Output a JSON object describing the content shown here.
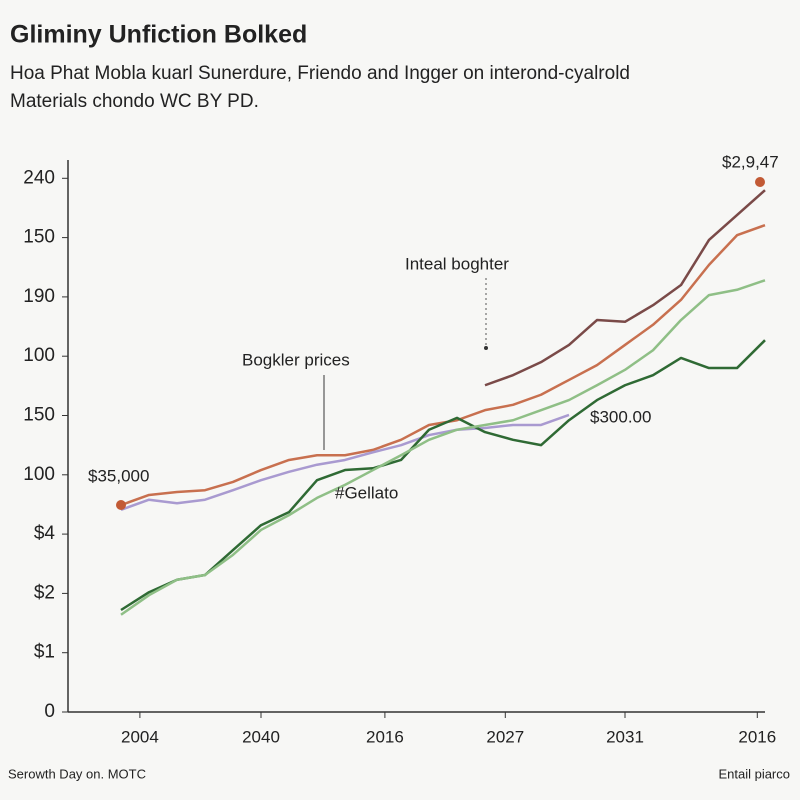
{
  "chart_data": {
    "type": "line",
    "title": "Gliminy Unfiction Bolked",
    "subtitle": [
      "Hoa Phat Mobla kuarl Sunerdure, Friendo and Ingger on interond-cyalrold",
      "Materials chondo WC BY PD."
    ],
    "x": [
      8,
      12,
      16,
      20,
      24,
      28,
      32,
      36,
      40,
      44,
      48,
      52,
      56,
      60,
      64,
      68,
      72,
      76,
      80,
      84,
      88,
      92,
      96,
      100
    ],
    "xlim": [
      0,
      100
    ],
    "xticks": [
      {
        "value": 10.7,
        "label": "2004"
      },
      {
        "value": 28,
        "label": "2040"
      },
      {
        "value": 45.7,
        "label": "2016"
      },
      {
        "value": 62.9,
        "label": "2027"
      },
      {
        "value": 80,
        "label": "2031"
      },
      {
        "value": 98.9,
        "label": "2016"
      }
    ],
    "ylim": [
      0,
      9.4
    ],
    "yticks": [
      0,
      {
        "value": 1,
        "label": "$1"
      },
      {
        "value": 2,
        "label": "$2"
      },
      {
        "value": 3,
        "label": "$4"
      },
      {
        "value": 4,
        "label": "100"
      },
      {
        "value": 5,
        "label": "150"
      },
      {
        "value": 6,
        "label": "100"
      },
      {
        "value": 7,
        "label": "190"
      },
      {
        "value": 8,
        "label": "150"
      },
      {
        "value": 9,
        "label": "240"
      }
    ],
    "series": [
      {
        "color": "#c8704f",
        "values": [
          3.49,
          3.66,
          3.71,
          3.74,
          3.88,
          4.08,
          4.25,
          4.33,
          4.33,
          4.42,
          4.59,
          4.84,
          4.92,
          5.09,
          5.18,
          5.35,
          5.6,
          5.85,
          6.19,
          6.53,
          6.95,
          7.54,
          8.04,
          8.21
        ]
      },
      {
        "color": "#7a4a48",
        "values": [
          null,
          null,
          null,
          null,
          null,
          null,
          null,
          null,
          null,
          null,
          null,
          null,
          null,
          5.51,
          5.68,
          5.9,
          6.19,
          6.61,
          6.58,
          6.86,
          7.2,
          7.96,
          8.38,
          8.8
        ]
      },
      {
        "color": "#a99ad0",
        "values": [
          3.41,
          3.58,
          3.52,
          3.58,
          3.74,
          3.91,
          4.05,
          4.17,
          4.25,
          4.38,
          4.5,
          4.67,
          4.76,
          4.79,
          4.84,
          4.84,
          5.01,
          null,
          null,
          null,
          null,
          null,
          null,
          null
        ]
      },
      {
        "color": "#2f6a34",
        "values": [
          1.72,
          2.02,
          2.23,
          2.31,
          2.73,
          3.15,
          3.37,
          3.91,
          4.08,
          4.11,
          4.25,
          4.76,
          4.96,
          4.72,
          4.59,
          4.5,
          4.92,
          5.26,
          5.51,
          5.68,
          5.97,
          5.8,
          5.8,
          6.27
        ]
      },
      {
        "color": "#8fbf86",
        "values": [
          1.64,
          1.97,
          2.23,
          2.31,
          2.65,
          3.07,
          3.32,
          3.61,
          3.83,
          4.08,
          4.33,
          4.59,
          4.76,
          4.84,
          4.92,
          5.09,
          5.26,
          5.51,
          5.77,
          6.1,
          6.61,
          7.03,
          7.12,
          7.28
        ]
      }
    ],
    "annotations": [
      "$2,9,47",
      "Inteal boghter",
      "Bogkler prices",
      "$300.00",
      "$35,000",
      "#Gellato"
    ],
    "footer_left": "Serowth Day on. MOTC",
    "footer_right": "Entail piarco"
  }
}
